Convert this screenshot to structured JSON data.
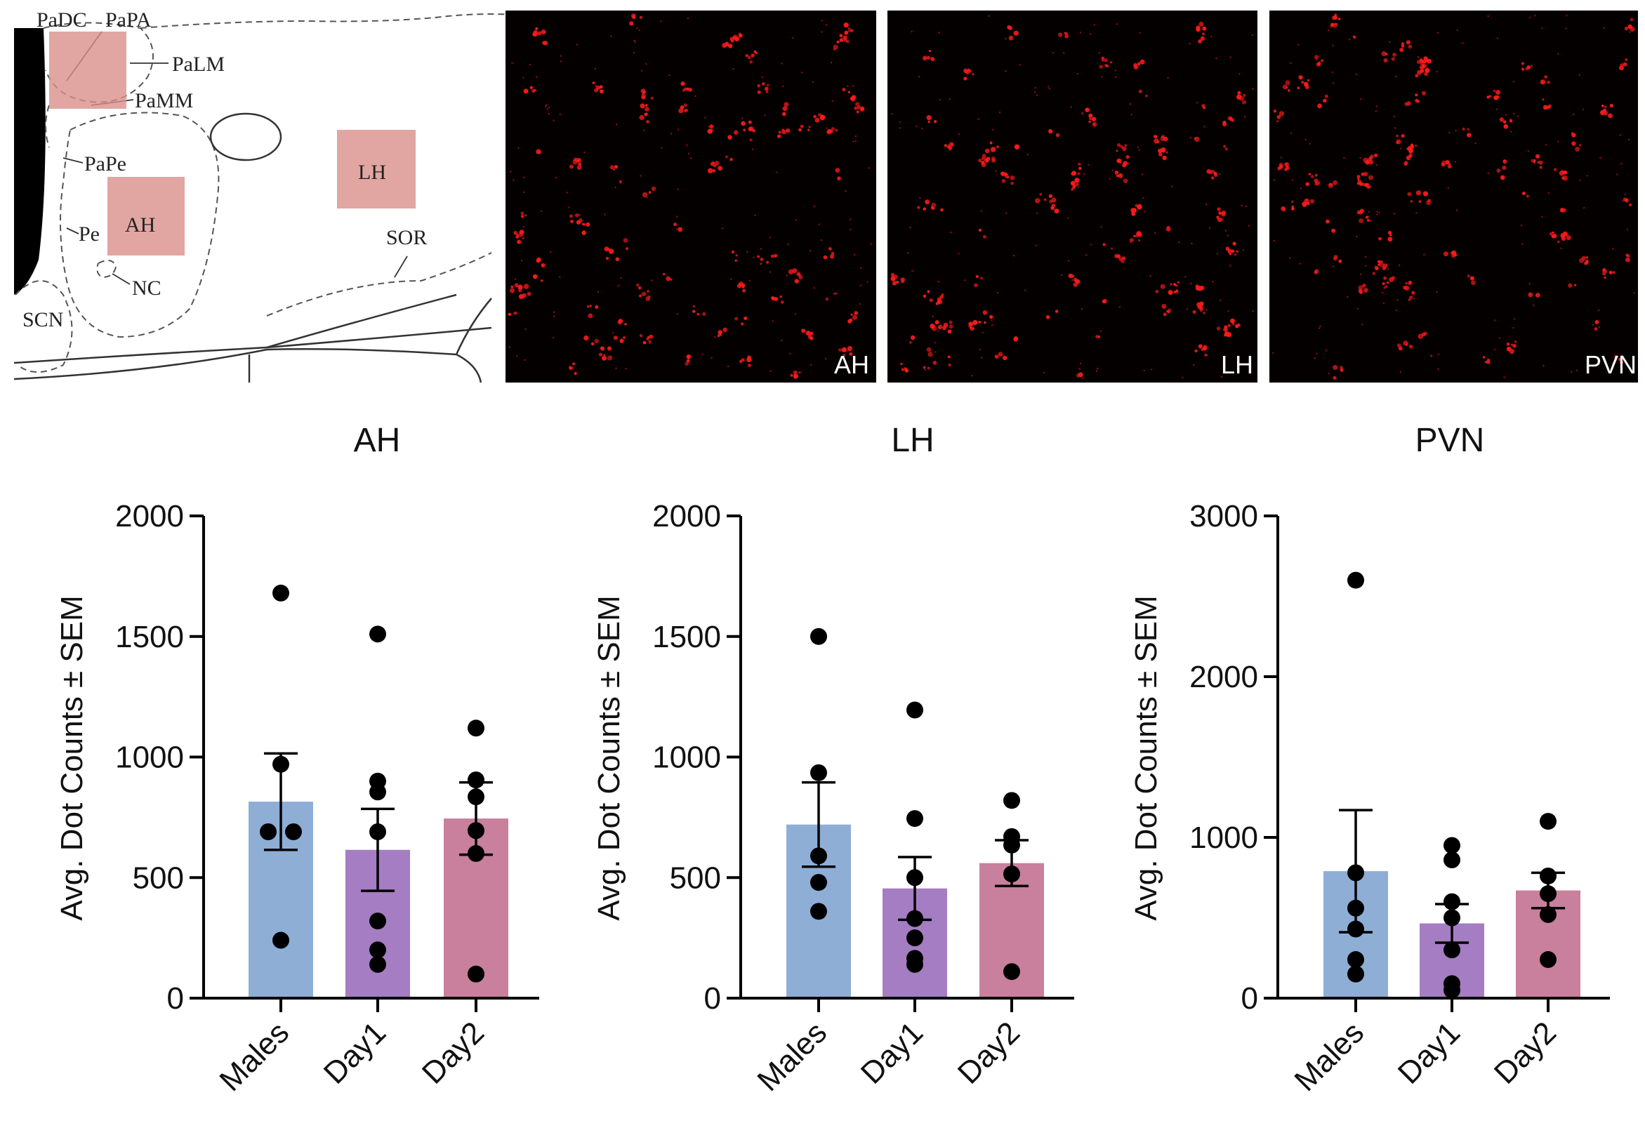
{
  "atlas": {
    "labels": [
      "PaDC",
      "PaPA",
      "PaLM",
      "PaMM",
      "PaPe",
      "Pe",
      "NC",
      "SCN",
      "SOR"
    ],
    "region_boxes": [
      "AH",
      "LH"
    ],
    "box_color": "#d9908a"
  },
  "micrographs": [
    {
      "label": "AH"
    },
    {
      "label": "LH"
    },
    {
      "label": "PVN"
    }
  ],
  "colors": {
    "Males": "#8eaed6",
    "Day1": "#a57dc2",
    "Day2": "#c8809c",
    "dot": "#000000",
    "signal": "#ff1a1a"
  },
  "chart_data": [
    {
      "type": "bar",
      "title": "AH",
      "ylabel": "Avg. Dot Counts ± SEM",
      "xlabel": "",
      "categories": [
        "Males",
        "Day1",
        "Day2"
      ],
      "ylim": [
        0,
        2000
      ],
      "yticks": [
        "0",
        "500",
        "1000",
        "1500",
        "2000"
      ],
      "tick_values": [
        0,
        500,
        1000,
        1500,
        2000
      ],
      "values": [
        815,
        615,
        745
      ],
      "sem": [
        200,
        170,
        150
      ],
      "points": [
        [
          1680,
          970,
          690,
          690,
          240
        ],
        [
          1510,
          900,
          855,
          690,
          320,
          200,
          140
        ],
        [
          1120,
          905,
          835,
          695,
          600,
          100
        ]
      ]
    },
    {
      "type": "bar",
      "title": "LH",
      "ylabel": "Avg. Dot Counts ± SEM",
      "xlabel": "",
      "categories": [
        "Males",
        "Day1",
        "Day2"
      ],
      "ylim": [
        0,
        2000
      ],
      "yticks": [
        "0",
        "500",
        "1000",
        "1500",
        "2000"
      ],
      "tick_values": [
        0,
        500,
        1000,
        1500,
        2000
      ],
      "values": [
        720,
        455,
        560
      ],
      "sem": [
        175,
        130,
        95
      ],
      "points": [
        [
          1500,
          935,
          590,
          480,
          360
        ],
        [
          1195,
          745,
          500,
          330,
          250,
          165,
          140
        ],
        [
          820,
          670,
          635,
          515,
          110
        ]
      ]
    },
    {
      "type": "bar",
      "title": "PVN",
      "ylabel": "Avg. Dot Counts ± SEM",
      "xlabel": "",
      "categories": [
        "Males",
        "Day1",
        "Day2"
      ],
      "ylim": [
        0,
        3000
      ],
      "yticks": [
        "0",
        "1000",
        "2000",
        "3000"
      ],
      "tick_values": [
        0,
        1000,
        2000,
        3000
      ],
      "values": [
        790,
        465,
        670
      ],
      "sem": [
        380,
        120,
        110
      ],
      "points": [
        [
          2600,
          780,
          560,
          430,
          240,
          150
        ],
        [
          950,
          860,
          600,
          500,
          300,
          90,
          50
        ],
        [
          1100,
          760,
          650,
          520,
          240
        ]
      ]
    }
  ]
}
